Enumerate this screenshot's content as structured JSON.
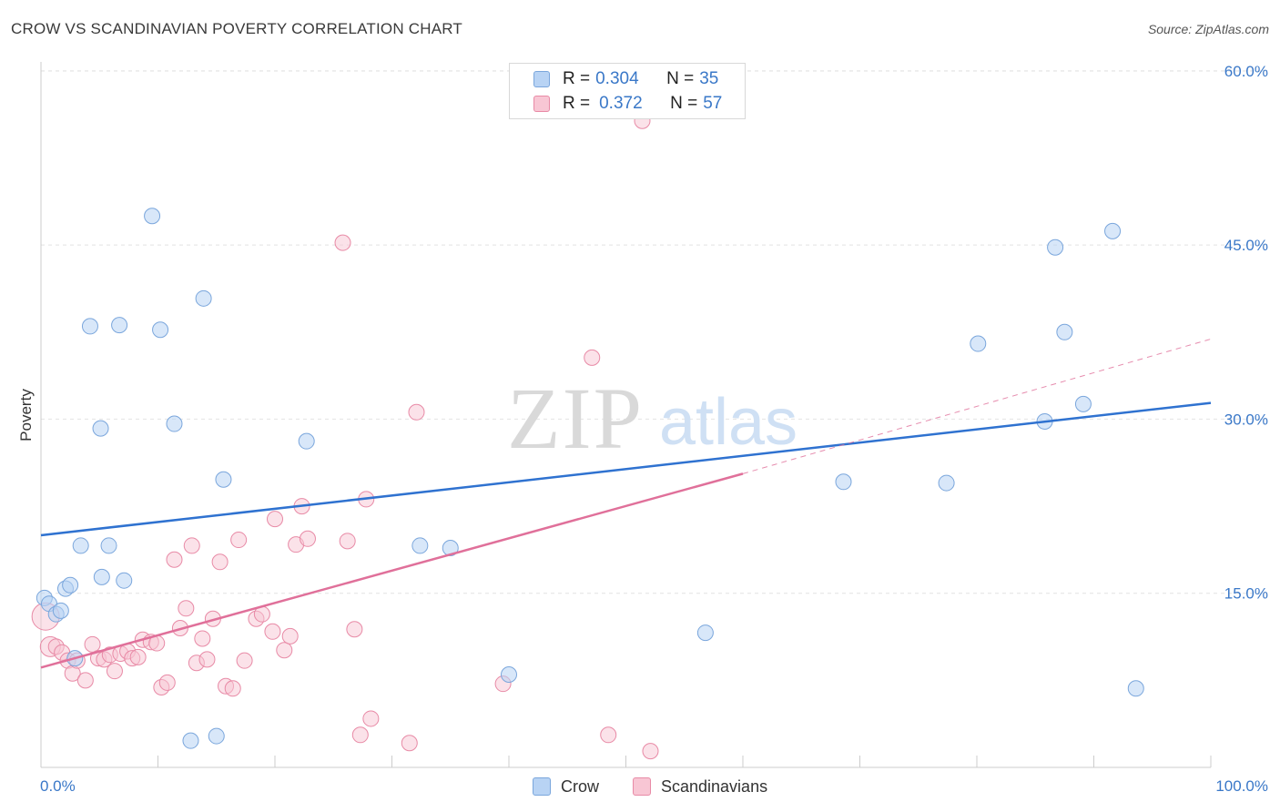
{
  "title": "CROW VS SCANDINAVIAN POVERTY CORRELATION CHART",
  "source": "Source: ZipAtlas.com",
  "watermark": {
    "zip": "ZIP",
    "atlas": "atlas"
  },
  "legend_top": [
    {
      "r_label": "R =",
      "r_value": "0.304",
      "n_label": "N =",
      "n_value": "35",
      "color": "#b8d3f4",
      "border": "#7aa6dc"
    },
    {
      "r_label": "R =",
      "r_value": "0.372",
      "n_label": "N =",
      "n_value": "57",
      "color": "#f8c6d4",
      "border": "#e88aa6"
    }
  ],
  "legend_bottom": [
    {
      "name": "Crow",
      "color": "#b8d3f4",
      "border": "#7aa6dc"
    },
    {
      "name": "Scandinavians",
      "color": "#f8c6d4",
      "border": "#e88aa6"
    }
  ],
  "colors": {
    "crow_line": "#2f72d0",
    "scand_line": "#e0709a",
    "grid": "#e2e2e2",
    "tick_label": "#3a78c8"
  },
  "chart_data": {
    "type": "scatter",
    "ylabel": "Poverty",
    "xlim": [
      0,
      100
    ],
    "ylim": [
      0,
      60
    ],
    "x_tick_labels": [
      "0.0%",
      "100.0%"
    ],
    "y_ticks": [
      15,
      30,
      45,
      60
    ],
    "y_tick_labels": [
      "15.0%",
      "30.0%",
      "45.0%",
      "60.0%"
    ],
    "grid": true,
    "series": [
      {
        "name": "Crow",
        "points": [
          [
            0.3,
            14.6
          ],
          [
            0.7,
            14.1
          ],
          [
            1.3,
            13.2
          ],
          [
            1.7,
            13.5
          ],
          [
            2.1,
            15.4
          ],
          [
            2.5,
            15.7
          ],
          [
            2.9,
            9.4
          ],
          [
            3.4,
            19.1
          ],
          [
            4.2,
            38.0
          ],
          [
            5.1,
            29.2
          ],
          [
            5.2,
            16.4
          ],
          [
            5.8,
            19.1
          ],
          [
            6.7,
            38.1
          ],
          [
            7.1,
            16.1
          ],
          [
            9.5,
            47.5
          ],
          [
            10.2,
            37.7
          ],
          [
            11.4,
            29.6
          ],
          [
            12.8,
            2.3
          ],
          [
            13.9,
            40.4
          ],
          [
            15.0,
            2.7
          ],
          [
            15.6,
            24.8
          ],
          [
            22.7,
            28.1
          ],
          [
            32.4,
            19.1
          ],
          [
            35.0,
            18.9
          ],
          [
            40.0,
            8.0
          ],
          [
            56.8,
            11.6
          ],
          [
            68.6,
            24.6
          ],
          [
            77.4,
            24.5
          ],
          [
            80.1,
            36.5
          ],
          [
            85.8,
            29.8
          ],
          [
            86.7,
            44.8
          ],
          [
            87.5,
            37.5
          ],
          [
            89.1,
            31.3
          ],
          [
            91.6,
            46.2
          ],
          [
            93.6,
            6.8
          ]
        ]
      },
      {
        "name": "Scandinavians",
        "points": [
          [
            0.4,
            13.0
          ],
          [
            0.8,
            10.4
          ],
          [
            1.3,
            10.4
          ],
          [
            1.8,
            9.9
          ],
          [
            2.3,
            9.2
          ],
          [
            2.7,
            8.1
          ],
          [
            3.1,
            9.2
          ],
          [
            3.8,
            7.5
          ],
          [
            4.4,
            10.6
          ],
          [
            4.9,
            9.4
          ],
          [
            5.4,
            9.3
          ],
          [
            5.9,
            9.7
          ],
          [
            6.3,
            8.3
          ],
          [
            6.8,
            9.8
          ],
          [
            7.4,
            10.0
          ],
          [
            7.8,
            9.4
          ],
          [
            8.3,
            9.5
          ],
          [
            8.7,
            11.0
          ],
          [
            9.4,
            10.8
          ],
          [
            9.9,
            10.7
          ],
          [
            10.3,
            6.9
          ],
          [
            10.8,
            7.3
          ],
          [
            11.4,
            17.9
          ],
          [
            11.9,
            12.0
          ],
          [
            12.4,
            13.7
          ],
          [
            12.9,
            19.1
          ],
          [
            13.3,
            9.0
          ],
          [
            13.8,
            11.1
          ],
          [
            14.2,
            9.3
          ],
          [
            14.7,
            12.8
          ],
          [
            15.3,
            17.7
          ],
          [
            15.8,
            7.0
          ],
          [
            16.4,
            6.8
          ],
          [
            16.9,
            19.6
          ],
          [
            17.4,
            9.2
          ],
          [
            18.4,
            12.8
          ],
          [
            18.9,
            13.2
          ],
          [
            19.8,
            11.7
          ],
          [
            20.0,
            21.4
          ],
          [
            20.8,
            10.1
          ],
          [
            21.3,
            11.3
          ],
          [
            21.8,
            19.2
          ],
          [
            22.3,
            22.5
          ],
          [
            22.8,
            19.7
          ],
          [
            25.8,
            45.2
          ],
          [
            26.2,
            19.5
          ],
          [
            26.8,
            11.9
          ],
          [
            27.3,
            2.8
          ],
          [
            27.8,
            23.1
          ],
          [
            28.2,
            4.2
          ],
          [
            31.5,
            2.1
          ],
          [
            32.1,
            30.6
          ],
          [
            39.5,
            7.2
          ],
          [
            47.1,
            35.3
          ],
          [
            48.5,
            2.8
          ],
          [
            51.4,
            55.7
          ],
          [
            52.1,
            1.4
          ]
        ]
      }
    ],
    "trendlines": [
      {
        "series": "Crow",
        "x0": 0,
        "y0": 20.0,
        "x1": 100,
        "y1": 31.4
      },
      {
        "series": "Scandinavians",
        "x0": 0,
        "y0": 8.6,
        "x1": 60,
        "y1": 25.3,
        "dashed_to_x": 100,
        "dashed_to_y": 36.9
      }
    ]
  }
}
